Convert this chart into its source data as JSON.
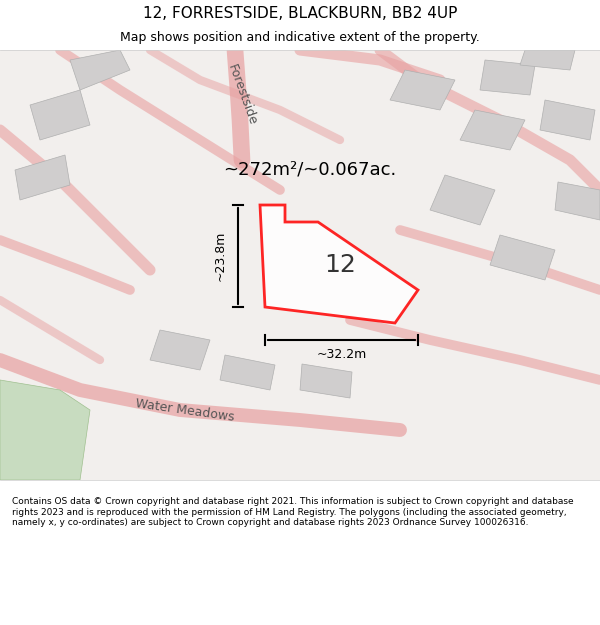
{
  "title": "12, FORRESTSIDE, BLACKBURN, BB2 4UP",
  "subtitle": "Map shows position and indicative extent of the property.",
  "footer": "Contains OS data © Crown copyright and database right 2021. This information is subject to Crown copyright and database rights 2023 and is reproduced with the permission of HM Land Registry. The polygons (including the associated geometry, namely x, y co-ordinates) are subject to Crown copyright and database rights 2023 Ordnance Survey 100026316.",
  "area_label": "~272m²/~0.067ac.",
  "width_label": "~32.2m",
  "height_label": "~23.8m",
  "plot_number": "12",
  "bg_color": "#f0eeec",
  "map_bg": "#f5f3f1",
  "plot_fill": "#ffffff",
  "plot_edge": "#ff0000",
  "road_color": "#f7c8c8",
  "building_color": "#d8d8d8",
  "street_name_forestside": "Forestside",
  "street_name_water": "Water Meadows",
  "figsize": [
    6.0,
    6.25
  ],
  "dpi": 100
}
